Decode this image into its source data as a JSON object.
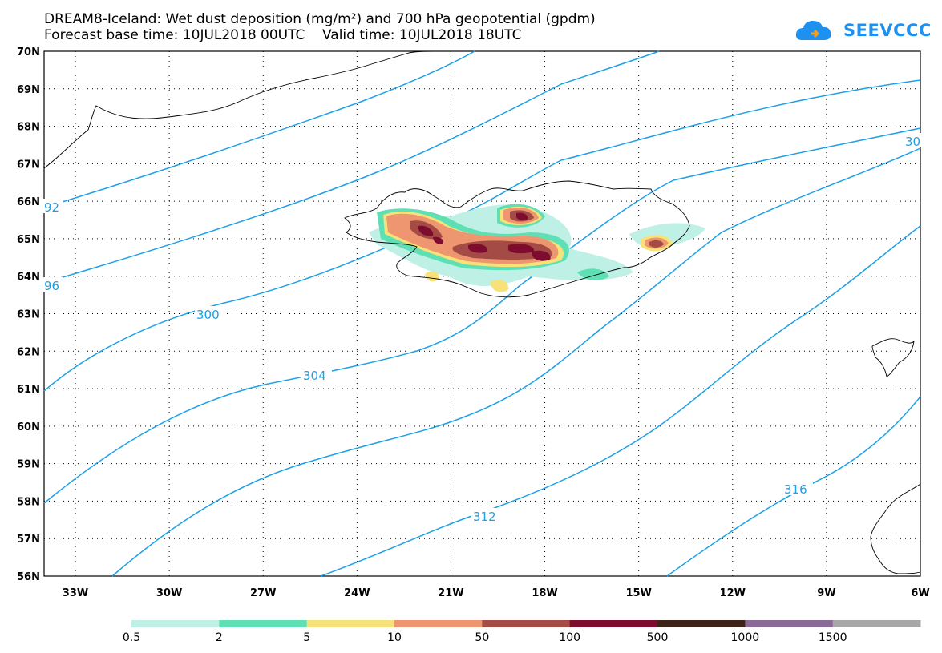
{
  "title": {
    "line1": "DREAM8-Iceland: Wet dust deposition (mg/m²) and 700 hPa geopotential (gpdm)",
    "line2": "Forecast base time: 10JUL2018 00UTC    Valid time: 10JUL2018 18UTC"
  },
  "logo": {
    "text": "SEEVCCC",
    "color": "#1e90ef"
  },
  "map": {
    "lat_ticks": [
      "70N",
      "69N",
      "68N",
      "67N",
      "66N",
      "65N",
      "64N",
      "63N",
      "62N",
      "61N",
      "60N",
      "59N",
      "58N",
      "57N",
      "56N"
    ],
    "lon_ticks": [
      "33W",
      "30W",
      "27W",
      "24W",
      "21W",
      "18W",
      "15W",
      "12W",
      "9W",
      "6W"
    ],
    "contour_color": "#1ca0e8",
    "contour_labels": [
      "92",
      "96",
      "300",
      "304",
      "312",
      "316",
      "30"
    ]
  },
  "legend": {
    "colors": [
      "#bff0e6",
      "#5fdfb4",
      "#f7e27a",
      "#ee9670",
      "#a54b46",
      "#7d0c2e",
      "#3e2319",
      "#8c6a98",
      "#a8a8a8"
    ],
    "labels": [
      "0.5",
      "2",
      "5",
      "10",
      "50",
      "100",
      "500",
      "1000",
      "1500"
    ]
  }
}
